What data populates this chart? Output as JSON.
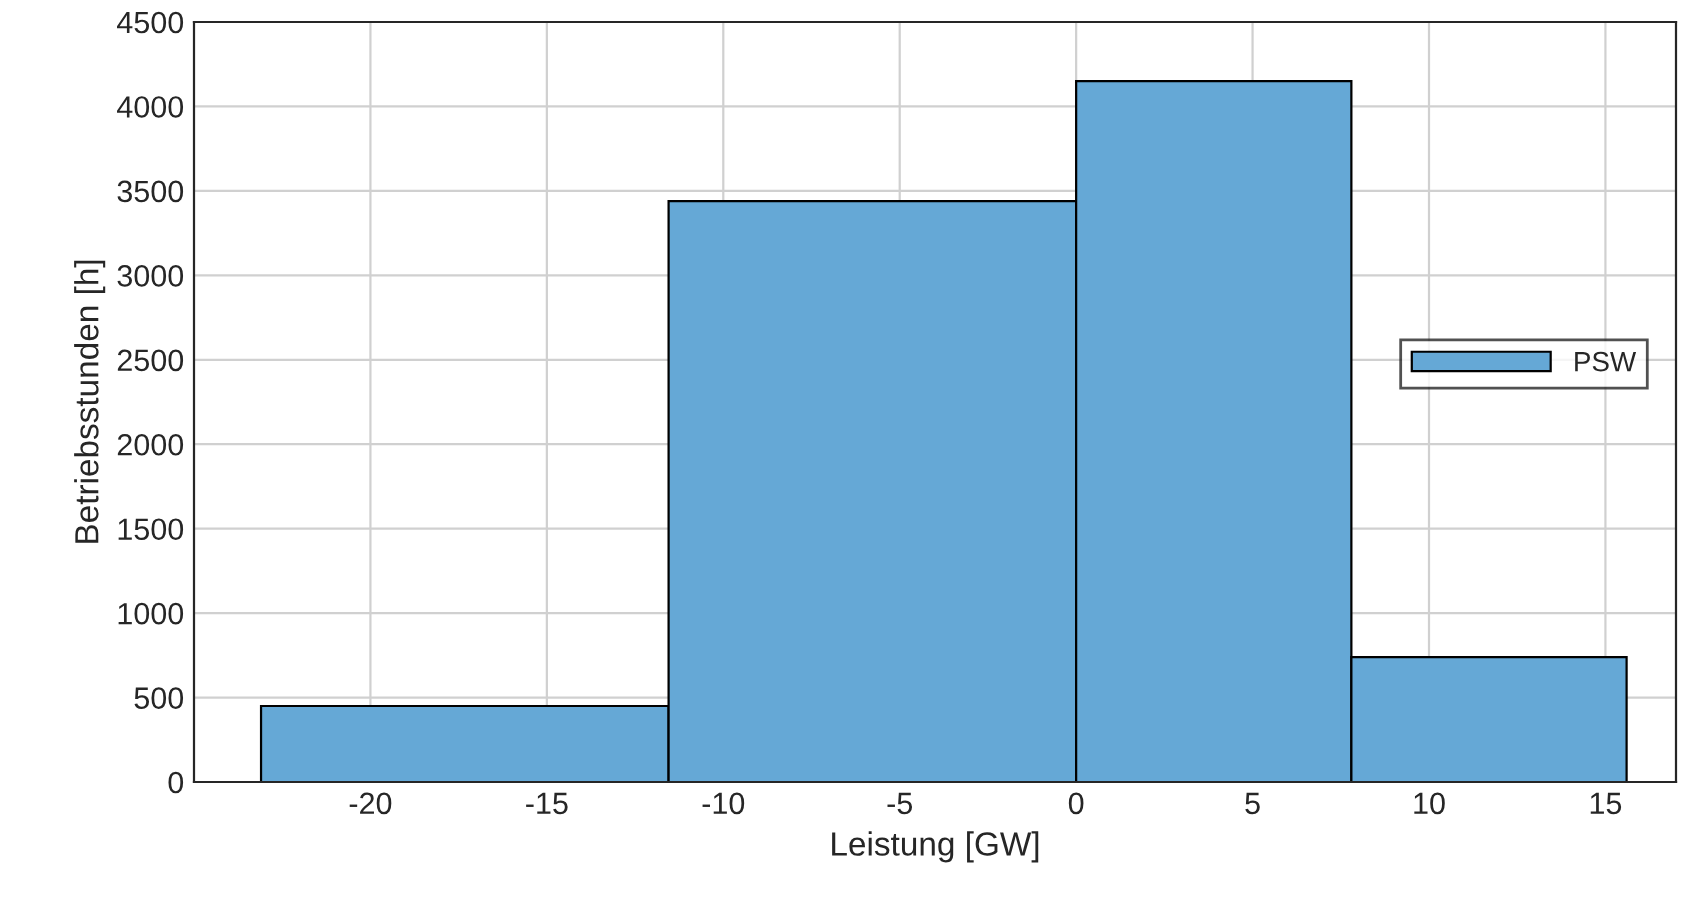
{
  "chart_data": {
    "type": "histogram",
    "xlabel": "Leistung [GW]",
    "ylabel": "Betriebsstunden [h]",
    "bins": [
      -23.1,
      -11.55,
      0,
      7.8,
      15.6
    ],
    "series": [
      {
        "name": "PSW",
        "color": "#65a8d6",
        "values": [
          450,
          3440,
          4150,
          740
        ]
      }
    ],
    "xlim": [
      -25,
      17
    ],
    "xticks": [
      -20,
      -15,
      -10,
      -5,
      0,
      5,
      10,
      15
    ],
    "ylim": [
      0,
      4500
    ],
    "yticks": [
      0,
      500,
      1000,
      1500,
      2000,
      2500,
      3000,
      3500,
      4000,
      4500
    ],
    "grid": true,
    "legend": "right"
  }
}
